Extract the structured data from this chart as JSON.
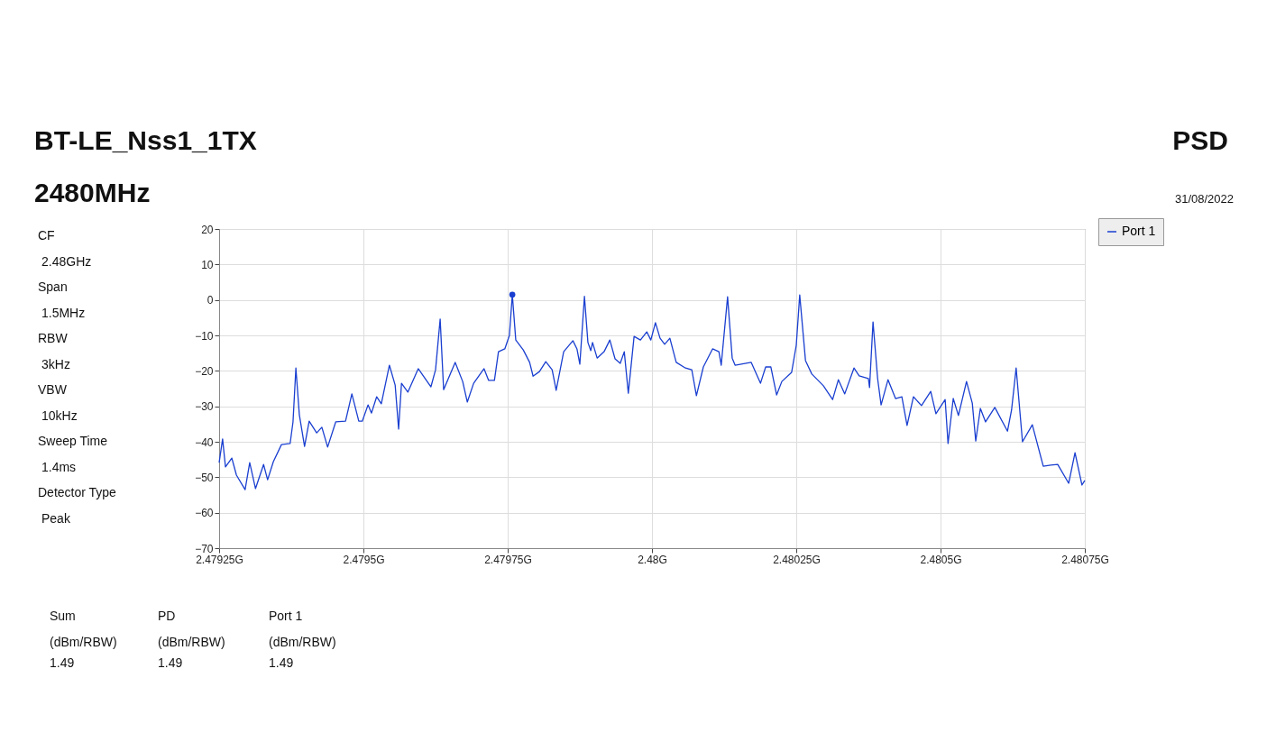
{
  "chart_data": {
    "type": "line",
    "title": "BT-LE_Nss1_1TX",
    "subtitle": "2480MHz",
    "annotations": [
      "PSD",
      "31/08/2022",
      "CF",
      "2.48GHz",
      "Span",
      "1.5MHz",
      "RBW",
      "3kHz",
      "VBW",
      "10kHz",
      "Sweep Time",
      "1.4ms",
      "Detector Type",
      "Peak",
      "Sum",
      "PD",
      "Port 1",
      "(dBm/RBW)",
      "(dBm/RBW)",
      "(dBm/RBW)",
      "1.49",
      "1.49",
      "1.49"
    ],
    "xlim": [
      2.47925,
      2.48075
    ],
    "xticks": [
      {
        "value": 2.47925,
        "label": "2.47925G"
      },
      {
        "value": 2.4795,
        "label": "2.4795G"
      },
      {
        "value": 2.47975,
        "label": "2.47975G"
      },
      {
        "value": 2.48,
        "label": "2.48G"
      },
      {
        "value": 2.48025,
        "label": "2.48025G"
      },
      {
        "value": 2.4805,
        "label": "2.4805G"
      },
      {
        "value": 2.48075,
        "label": "2.48075G"
      }
    ],
    "ylim": [
      -70,
      20
    ],
    "yticks": [
      -70,
      -60,
      -50,
      -40,
      -30,
      -20,
      -10,
      0,
      10,
      20
    ],
    "grid": true,
    "legend": "top right",
    "marker": "none",
    "line_style": "solid",
    "series": [
      {
        "name": "Port 1",
        "color": "#1a3fd0",
        "x": [
          2.47925,
          2.479256,
          2.479261,
          2.479272,
          2.47928,
          2.479295,
          2.479303,
          2.479313,
          2.479327,
          2.479334,
          2.479344,
          2.479358,
          2.479373,
          2.479378,
          2.479383,
          2.479389,
          2.479398,
          2.479406,
          2.479419,
          2.479428,
          2.479438,
          2.479452,
          2.479469,
          2.47948,
          2.479492,
          2.479498,
          2.479508,
          2.479514,
          2.479523,
          2.479531,
          2.479545,
          2.479555,
          2.479561,
          2.479566,
          2.479577,
          2.479595,
          2.479617,
          2.479625,
          2.479633,
          2.479639,
          2.479659,
          2.479672,
          2.47968,
          2.479691,
          2.479709,
          2.479717,
          2.479727,
          2.479734,
          2.479745,
          2.479753,
          2.479758,
          2.479764,
          2.479777,
          2.479788,
          2.479794,
          2.479805,
          2.479816,
          2.479827,
          2.479834,
          2.479847,
          2.479863,
          2.47987,
          2.479875,
          2.479883,
          2.479889,
          2.479894,
          2.479897,
          2.479905,
          2.479917,
          2.479927,
          2.479936,
          2.479945,
          2.479952,
          2.479959,
          2.479969,
          2.47998,
          2.479991,
          2.479998,
          2.480006,
          2.480014,
          2.480022,
          2.480031,
          2.480042,
          2.480058,
          2.480069,
          2.480077,
          2.480089,
          2.480105,
          2.480116,
          2.48012,
          2.480131,
          2.480139,
          2.480144,
          2.480172,
          2.480188,
          2.480197,
          2.480206,
          2.480216,
          2.480225,
          2.480242,
          2.48025,
          2.480256,
          2.480266,
          2.480277,
          2.480297,
          2.480313,
          2.480323,
          2.480334,
          2.48035,
          2.480359,
          2.480375,
          2.480377,
          2.480383,
          2.480391,
          2.480397,
          2.480409,
          2.480422,
          2.480433,
          2.480442,
          2.480453,
          2.480467,
          2.480483,
          2.480492,
          2.480508,
          2.480513,
          2.480522,
          2.480531,
          2.480545,
          2.480555,
          2.480561,
          2.480569,
          2.480578,
          2.480594,
          2.480616,
          2.480623,
          2.480631,
          2.480642,
          2.480659,
          2.480678,
          2.480691,
          2.480703,
          2.480722,
          2.480733,
          2.480745,
          2.48075
        ],
        "values": [
          -45.9,
          -39.2,
          -47.1,
          -44.6,
          -49.4,
          -53.5,
          -45.9,
          -53.2,
          -46.4,
          -50.7,
          -45.6,
          -40.8,
          -40.5,
          -34.4,
          -19.2,
          -32.4,
          -41.3,
          -34.2,
          -37.5,
          -35.9,
          -41.5,
          -34.4,
          -34.2,
          -26.5,
          -34.2,
          -34.2,
          -29.6,
          -31.9,
          -27.3,
          -29.3,
          -18.4,
          -24.0,
          -36.4,
          -23.5,
          -26.0,
          -19.4,
          -24.5,
          -19.7,
          -5.4,
          -25.3,
          -17.6,
          -23.0,
          -28.8,
          -23.5,
          -19.4,
          -22.7,
          -22.7,
          -14.6,
          -13.8,
          -10.0,
          1.5,
          -11.3,
          -14.1,
          -17.6,
          -21.5,
          -20.2,
          -17.4,
          -19.7,
          -25.5,
          -14.6,
          -11.5,
          -13.8,
          -18.1,
          1.0,
          -12.0,
          -14.3,
          -12.0,
          -16.4,
          -14.6,
          -11.3,
          -16.6,
          -17.9,
          -14.6,
          -26.3,
          -10.3,
          -11.3,
          -9.0,
          -11.3,
          -6.4,
          -10.8,
          -12.5,
          -10.8,
          -17.6,
          -19.2,
          -19.7,
          -27.0,
          -18.9,
          -13.8,
          -14.6,
          -18.4,
          0.9,
          -16.4,
          -18.4,
          -17.6,
          -23.5,
          -18.9,
          -18.9,
          -26.8,
          -23.0,
          -20.4,
          -12.8,
          1.4,
          -17.1,
          -20.9,
          -24.2,
          -28.1,
          -22.5,
          -26.5,
          -19.2,
          -21.4,
          -22.2,
          -24.7,
          -6.2,
          -22.2,
          -29.6,
          -22.5,
          -27.8,
          -27.3,
          -35.4,
          -27.3,
          -29.8,
          -25.8,
          -32.1,
          -28.1,
          -40.5,
          -27.8,
          -32.6,
          -23.0,
          -29.1,
          -39.8,
          -30.6,
          -34.4,
          -30.3,
          -37.0,
          -31.1,
          -19.2,
          -40.0,
          -35.2,
          -46.9,
          -46.6,
          -46.4,
          -51.7,
          -43.1,
          -52.2,
          -50.9
        ]
      },
      {
        "type": "scatter",
        "marker": "circle",
        "color": "#1a3fd0",
        "x": [
          2.479758
        ],
        "values": [
          1.5
        ]
      }
    ]
  }
}
